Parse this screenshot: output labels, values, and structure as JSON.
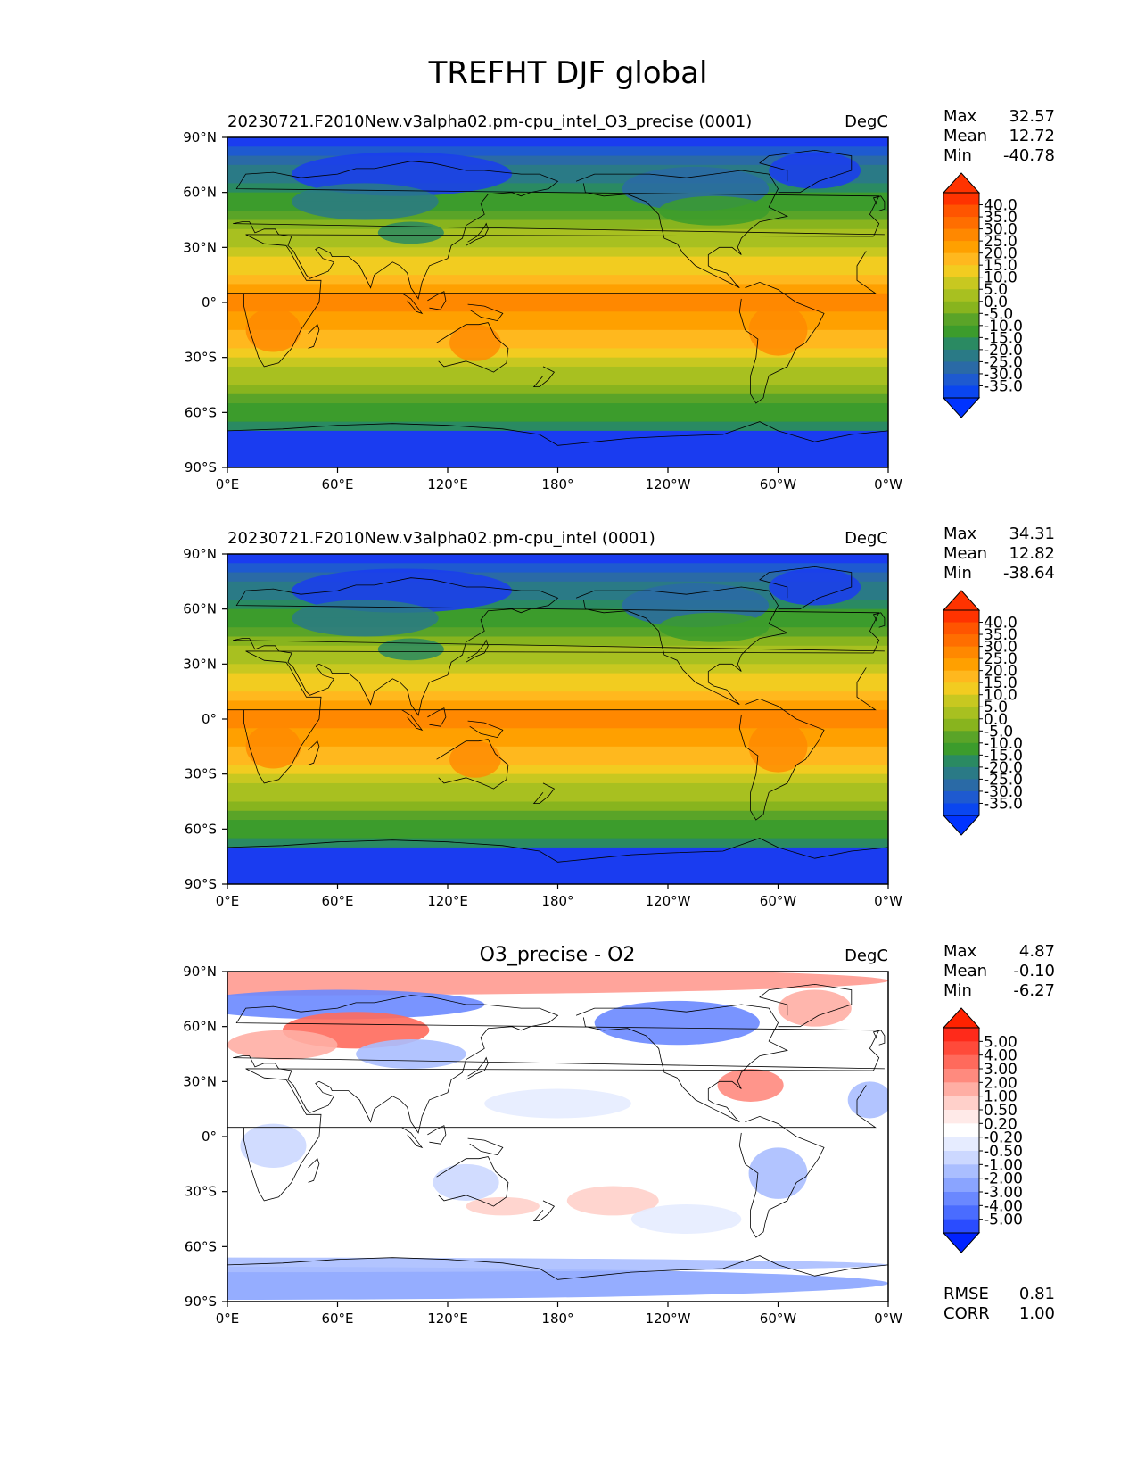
{
  "figure": {
    "title": "TREFHT DJF global"
  },
  "lon_ticks": [
    "0°E",
    "60°E",
    "120°E",
    "180°",
    "120°W",
    "60°W",
    "0°W"
  ],
  "lat_ticks": [
    "90°N",
    "60°N",
    "30°N",
    "0°",
    "30°S",
    "60°S",
    "90°S"
  ],
  "stat_labels": {
    "max": "Max",
    "mean": "Mean",
    "min": "Min",
    "rmse": "RMSE",
    "corr": "CORR"
  },
  "panels": [
    {
      "title": "20230721.F2010New.v3alpha02.pm-cpu_intel_O3_precise (0001)",
      "units": "DegC",
      "stats": {
        "max": "32.57",
        "mean": "12.72",
        "min": "-40.78"
      },
      "colorbar": "abs"
    },
    {
      "title": "20230721.F2010New.v3alpha02.pm-cpu_intel (0001)",
      "units": "DegC",
      "stats": {
        "max": "34.31",
        "mean": "12.82",
        "min": "-38.64"
      },
      "colorbar": "abs"
    },
    {
      "title": "O3_precise - O2",
      "units": "DegC",
      "stats": {
        "max": "4.87",
        "mean": "-0.10",
        "min": "-6.27"
      },
      "extra_stats": {
        "rmse": "0.81",
        "corr": "1.00"
      },
      "colorbar": "diff"
    }
  ],
  "colorbars": {
    "abs": {
      "labels": [
        "40.0",
        "35.0",
        "30.0",
        "25.0",
        "20.0",
        "15.0",
        "10.0",
        "5.0",
        "0.0",
        "-5.0",
        "-10.0",
        "-15.0",
        "-20.0",
        "-25.0",
        "-30.0",
        "-35.0"
      ],
      "colors_top_to_bottom": [
        "#ff3300",
        "#ff5500",
        "#ff6e00",
        "#ff8800",
        "#ffa000",
        "#ffb81e",
        "#f2cc20",
        "#c8c820",
        "#a8c020",
        "#88b41e",
        "#5aa428",
        "#3c9c2c",
        "#2a8a62",
        "#2a7a86",
        "#2a6aa6",
        "#1e5ad0",
        "#0a46f0"
      ],
      "tip_top": "#ff3300",
      "tip_bottom": "#0033ff"
    },
    "diff": {
      "labels": [
        "5.00",
        "4.00",
        "3.00",
        "2.00",
        "1.00",
        "0.50",
        "0.20",
        "-0.20",
        "-0.50",
        "-1.00",
        "-2.00",
        "-3.00",
        "-4.00",
        "-5.00"
      ],
      "colors_top_to_bottom": [
        "#ff2a1a",
        "#ff4a3a",
        "#ff6a5c",
        "#ff8a7e",
        "#ffaea4",
        "#ffd0ca",
        "#ffeae8",
        "#ffffff",
        "#e6ecff",
        "#ccd8ff",
        "#aabeff",
        "#8aa4ff",
        "#6a88ff",
        "#4a6cff",
        "#2a4cff"
      ],
      "tip_top": "#ff2200",
      "tip_bottom": "#0022ff"
    }
  },
  "field_colors": {
    "abs_palette": [
      "#1a3cf0",
      "#1e5ad0",
      "#2a6aa6",
      "#2a7a86",
      "#2a8a62",
      "#3c9c2c",
      "#5aa428",
      "#88b41e",
      "#a8c020",
      "#c8c820",
      "#f2cc20",
      "#ffb81e",
      "#ffa000",
      "#ff8800"
    ],
    "coast": "#000000"
  }
}
